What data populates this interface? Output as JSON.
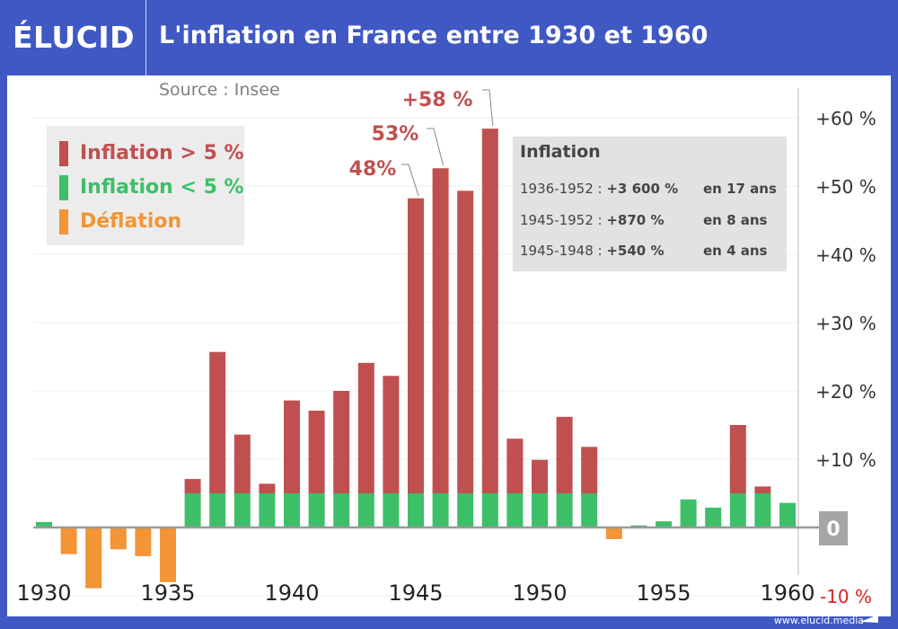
{
  "header": {
    "logo": "ÉLUCID",
    "title": "L'inflation en France entre 1930 et 1960"
  },
  "source": "Source : Insee",
  "footer": "www.elucid.media",
  "legend": [
    {
      "label": "Inflation > 5 %",
      "color": "#c05050"
    },
    {
      "label": "Inflation < 5 %",
      "color": "#3dbf68"
    },
    {
      "label": "Déflation",
      "color": "#f39435"
    }
  ],
  "info": {
    "title": "Inflation",
    "rows": [
      {
        "period": "1936-1952 : ",
        "value": "+3 600 %",
        "duration": "en 17 ans"
      },
      {
        "period": "1945-1952 : ",
        "value": "+870 %",
        "duration": "en 8 ans"
      },
      {
        "period": "1945-1948 : ",
        "value": "+540 %",
        "duration": "en 4 ans"
      }
    ]
  },
  "chart_data": {
    "type": "bar",
    "title": "L'inflation en France entre 1930 et 1960",
    "categories": [
      1930,
      1931,
      1932,
      1933,
      1934,
      1935,
      1936,
      1937,
      1938,
      1939,
      1940,
      1941,
      1942,
      1943,
      1944,
      1945,
      1946,
      1947,
      1948,
      1949,
      1950,
      1951,
      1952,
      1953,
      1954,
      1955,
      1956,
      1957,
      1958,
      1959,
      1960
    ],
    "values": [
      0.8,
      -3.9,
      -8.9,
      -3.2,
      -4.2,
      -8.0,
      7.1,
      25.7,
      13.6,
      6.4,
      18.6,
      17.1,
      20.0,
      24.1,
      22.2,
      48.2,
      52.6,
      49.3,
      58.4,
      13.0,
      9.9,
      16.2,
      11.8,
      -1.7,
      0.3,
      0.9,
      4.1,
      2.9,
      15.0,
      6.0,
      3.6
    ],
    "threshold": 5,
    "ylim": [
      -10,
      60
    ],
    "yticks": [
      {
        "v": 60,
        "label": "+60 %"
      },
      {
        "v": 50,
        "label": "+50 %"
      },
      {
        "v": 40,
        "label": "+40 %"
      },
      {
        "v": 30,
        "label": "+30 %"
      },
      {
        "v": 20,
        "label": "+20 %"
      },
      {
        "v": 10,
        "label": "+10 %"
      },
      {
        "v": 0,
        "label": "0"
      },
      {
        "v": -10,
        "label": "-10 %"
      }
    ],
    "xticks": [
      1930,
      1935,
      1940,
      1945,
      1950,
      1955,
      1960
    ],
    "annotations": [
      {
        "year": 1948,
        "label": "+58 %"
      },
      {
        "year": 1946,
        "label": "53%"
      },
      {
        "year": 1945,
        "label": "48%"
      }
    ],
    "grid": true,
    "colors": {
      "high": "#c05050",
      "low": "#3dbf68",
      "deflation": "#f39435",
      "negative_tick": "#e02020",
      "axis": "#999999"
    }
  }
}
